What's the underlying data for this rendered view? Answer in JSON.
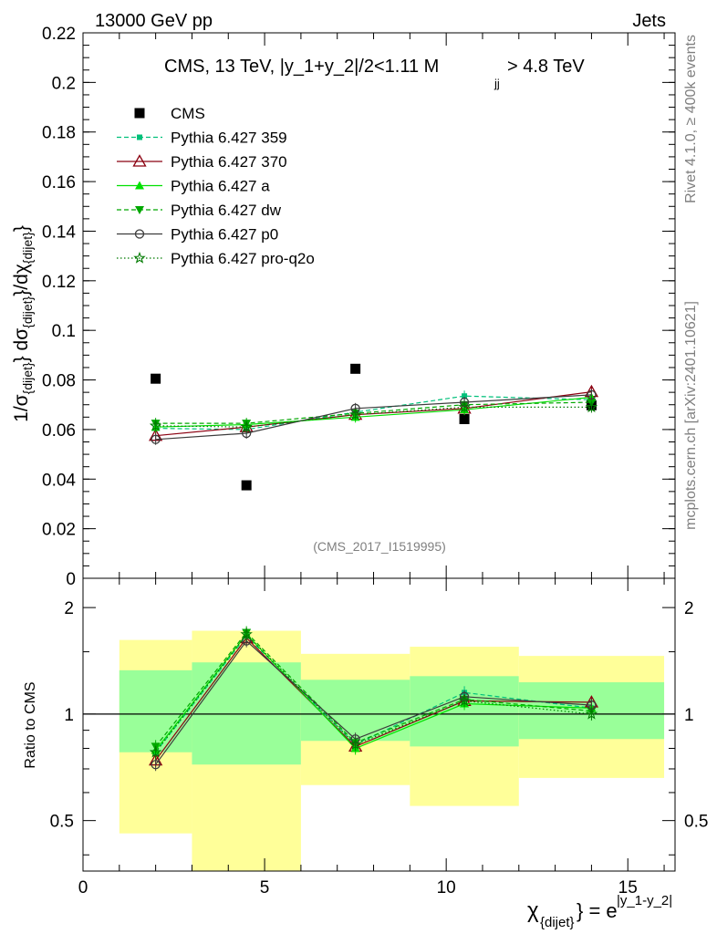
{
  "header": {
    "left": "13000 GeV pp",
    "right": "Jets"
  },
  "side": {
    "rivet": "Rivet 4.1.0, ≥ 400k events",
    "mcplots": "mcplots.cern.ch [arXiv:2401.10621]"
  },
  "colors": {
    "cms": "#000000",
    "p359": "#00c07a",
    "p370": "#8b0010",
    "pa": "#00e000",
    "pdw": "#00a800",
    "pp0": "#3c3c3c",
    "pproq2o": "#007a00",
    "band_yellow": "#ffff99",
    "band_green": "#99ff99"
  },
  "chart_data": [
    {
      "type": "scatter",
      "title": "CMS, 13 TeV, |y_1+y_2|/2<1.11 M_{jj}> 4.8 TeV",
      "title_main": "CMS, 13 TeV, |y_1+y_2|/2<1.11 M",
      "title_sub": "jj",
      "title_tail": "> 4.8 TeV",
      "ylabel": "1/σ_{dijet} dσ_{dijet}/dχ_{dijet}",
      "ylabel_parts": [
        "1/σ",
        "{dijet}",
        "} dσ",
        "{dijet}",
        "}/dχ",
        "{dijet}",
        "}"
      ],
      "watermark": "(CMS_2017_I1519995)",
      "xlim": [
        0,
        16.3
      ],
      "ylim": [
        0,
        0.22
      ],
      "yticks": [
        0,
        0.02,
        0.04,
        0.06,
        0.08,
        0.1,
        0.12,
        0.14,
        0.16,
        0.18,
        0.2,
        0.22
      ],
      "ytick_labels": [
        "0",
        "0.02",
        "0.04",
        "0.06",
        "0.08",
        "0.1",
        "0.12",
        "0.14",
        "0.16",
        "0.18",
        "0.2",
        "0.22"
      ],
      "x": [
        2,
        4.5,
        7.5,
        10.5,
        14
      ],
      "bins": [
        [
          1,
          3
        ],
        [
          3,
          6
        ],
        [
          6,
          9
        ],
        [
          9,
          12
        ],
        [
          12,
          16
        ]
      ],
      "series": [
        {
          "name": "CMS",
          "key": "cms",
          "marker": "square",
          "line": "none",
          "values": [
            0.0805,
            0.0375,
            0.0845,
            0.0642,
            0.0698
          ]
        },
        {
          "name": "Pythia 6.427 359",
          "key": "p359",
          "marker": "small-square",
          "line": "dashed",
          "values": [
            0.0605,
            0.06,
            0.067,
            0.0735,
            0.072
          ]
        },
        {
          "name": "Pythia 6.427 370",
          "key": "p370",
          "marker": "open-triangle",
          "line": "solid",
          "values": [
            0.0575,
            0.061,
            0.066,
            0.0685,
            0.0752
          ]
        },
        {
          "name": "Pythia 6.427 a",
          "key": "pa",
          "marker": "filled-triangle",
          "line": "solid",
          "values": [
            0.061,
            0.062,
            0.065,
            0.068,
            0.073
          ]
        },
        {
          "name": "Pythia 6.427 dw",
          "key": "pdw",
          "marker": "filled-triangle-down",
          "line": "dashed",
          "values": [
            0.0625,
            0.0625,
            0.0665,
            0.07,
            0.071
          ]
        },
        {
          "name": "Pythia 6.427 p0",
          "key": "pp0",
          "marker": "open-circle",
          "line": "solid",
          "values": [
            0.056,
            0.0585,
            0.0685,
            0.071,
            0.074
          ]
        },
        {
          "name": "Pythia 6.427 pro-q2o",
          "key": "pproq2o",
          "marker": "open-star",
          "line": "dotted",
          "values": [
            0.0615,
            0.061,
            0.066,
            0.069,
            0.069
          ]
        }
      ]
    },
    {
      "type": "line",
      "ylabel": "Ratio to CMS",
      "xlabel": "χ_{dijet} = e^{|y_1-y_2|}",
      "xlabel_main": "χ",
      "xlabel_sub": "{dijet}",
      "xlabel_mid": "} = e",
      "xlabel_sup": "|y_1-y_2|",
      "ylim": [
        0.36,
        2.42
      ],
      "ylog": true,
      "yticks": [
        0.5,
        1,
        2
      ],
      "ytick_labels": [
        "0.5",
        "1",
        "2"
      ],
      "xticks": [
        0,
        5,
        10,
        15
      ],
      "xtick_labels": [
        "0",
        "5",
        "10",
        "15"
      ],
      "bands": [
        {
          "bin": [
            1,
            3
          ],
          "yellow": [
            0.46,
            1.62
          ],
          "green": [
            0.78,
            1.33
          ]
        },
        {
          "bin": [
            3,
            6
          ],
          "yellow": [
            0.3,
            1.72
          ],
          "green": [
            0.72,
            1.4
          ]
        },
        {
          "bin": [
            6,
            9
          ],
          "yellow": [
            0.63,
            1.48
          ],
          "green": [
            0.84,
            1.25
          ]
        },
        {
          "bin": [
            9,
            12
          ],
          "yellow": [
            0.55,
            1.55
          ],
          "green": [
            0.81,
            1.28
          ]
        },
        {
          "bin": [
            12,
            16
          ],
          "yellow": [
            0.66,
            1.46
          ],
          "green": [
            0.85,
            1.23
          ]
        }
      ],
      "reference": 1,
      "x": [
        2,
        4.5,
        7.5,
        10.5,
        14
      ],
      "series": [
        {
          "name": "Pythia 6.427 359",
          "key": "p359",
          "values": [
            0.78,
            1.66,
            0.82,
            1.15,
            1.04
          ]
        },
        {
          "name": "Pythia 6.427 370",
          "key": "p370",
          "values": [
            0.74,
            1.64,
            0.81,
            1.09,
            1.08
          ]
        },
        {
          "name": "Pythia 6.427 a",
          "key": "pa",
          "values": [
            0.79,
            1.68,
            0.8,
            1.07,
            1.04
          ]
        },
        {
          "name": "Pythia 6.427 dw",
          "key": "pdw",
          "values": [
            0.81,
            1.7,
            0.83,
            1.1,
            1.02
          ]
        },
        {
          "name": "Pythia 6.427 p0",
          "key": "pp0",
          "values": [
            0.72,
            1.61,
            0.85,
            1.12,
            1.06
          ]
        },
        {
          "name": "Pythia 6.427 pro-q2o",
          "key": "pproq2o",
          "values": [
            0.78,
            1.68,
            0.82,
            1.09,
            1.0
          ]
        }
      ]
    }
  ]
}
